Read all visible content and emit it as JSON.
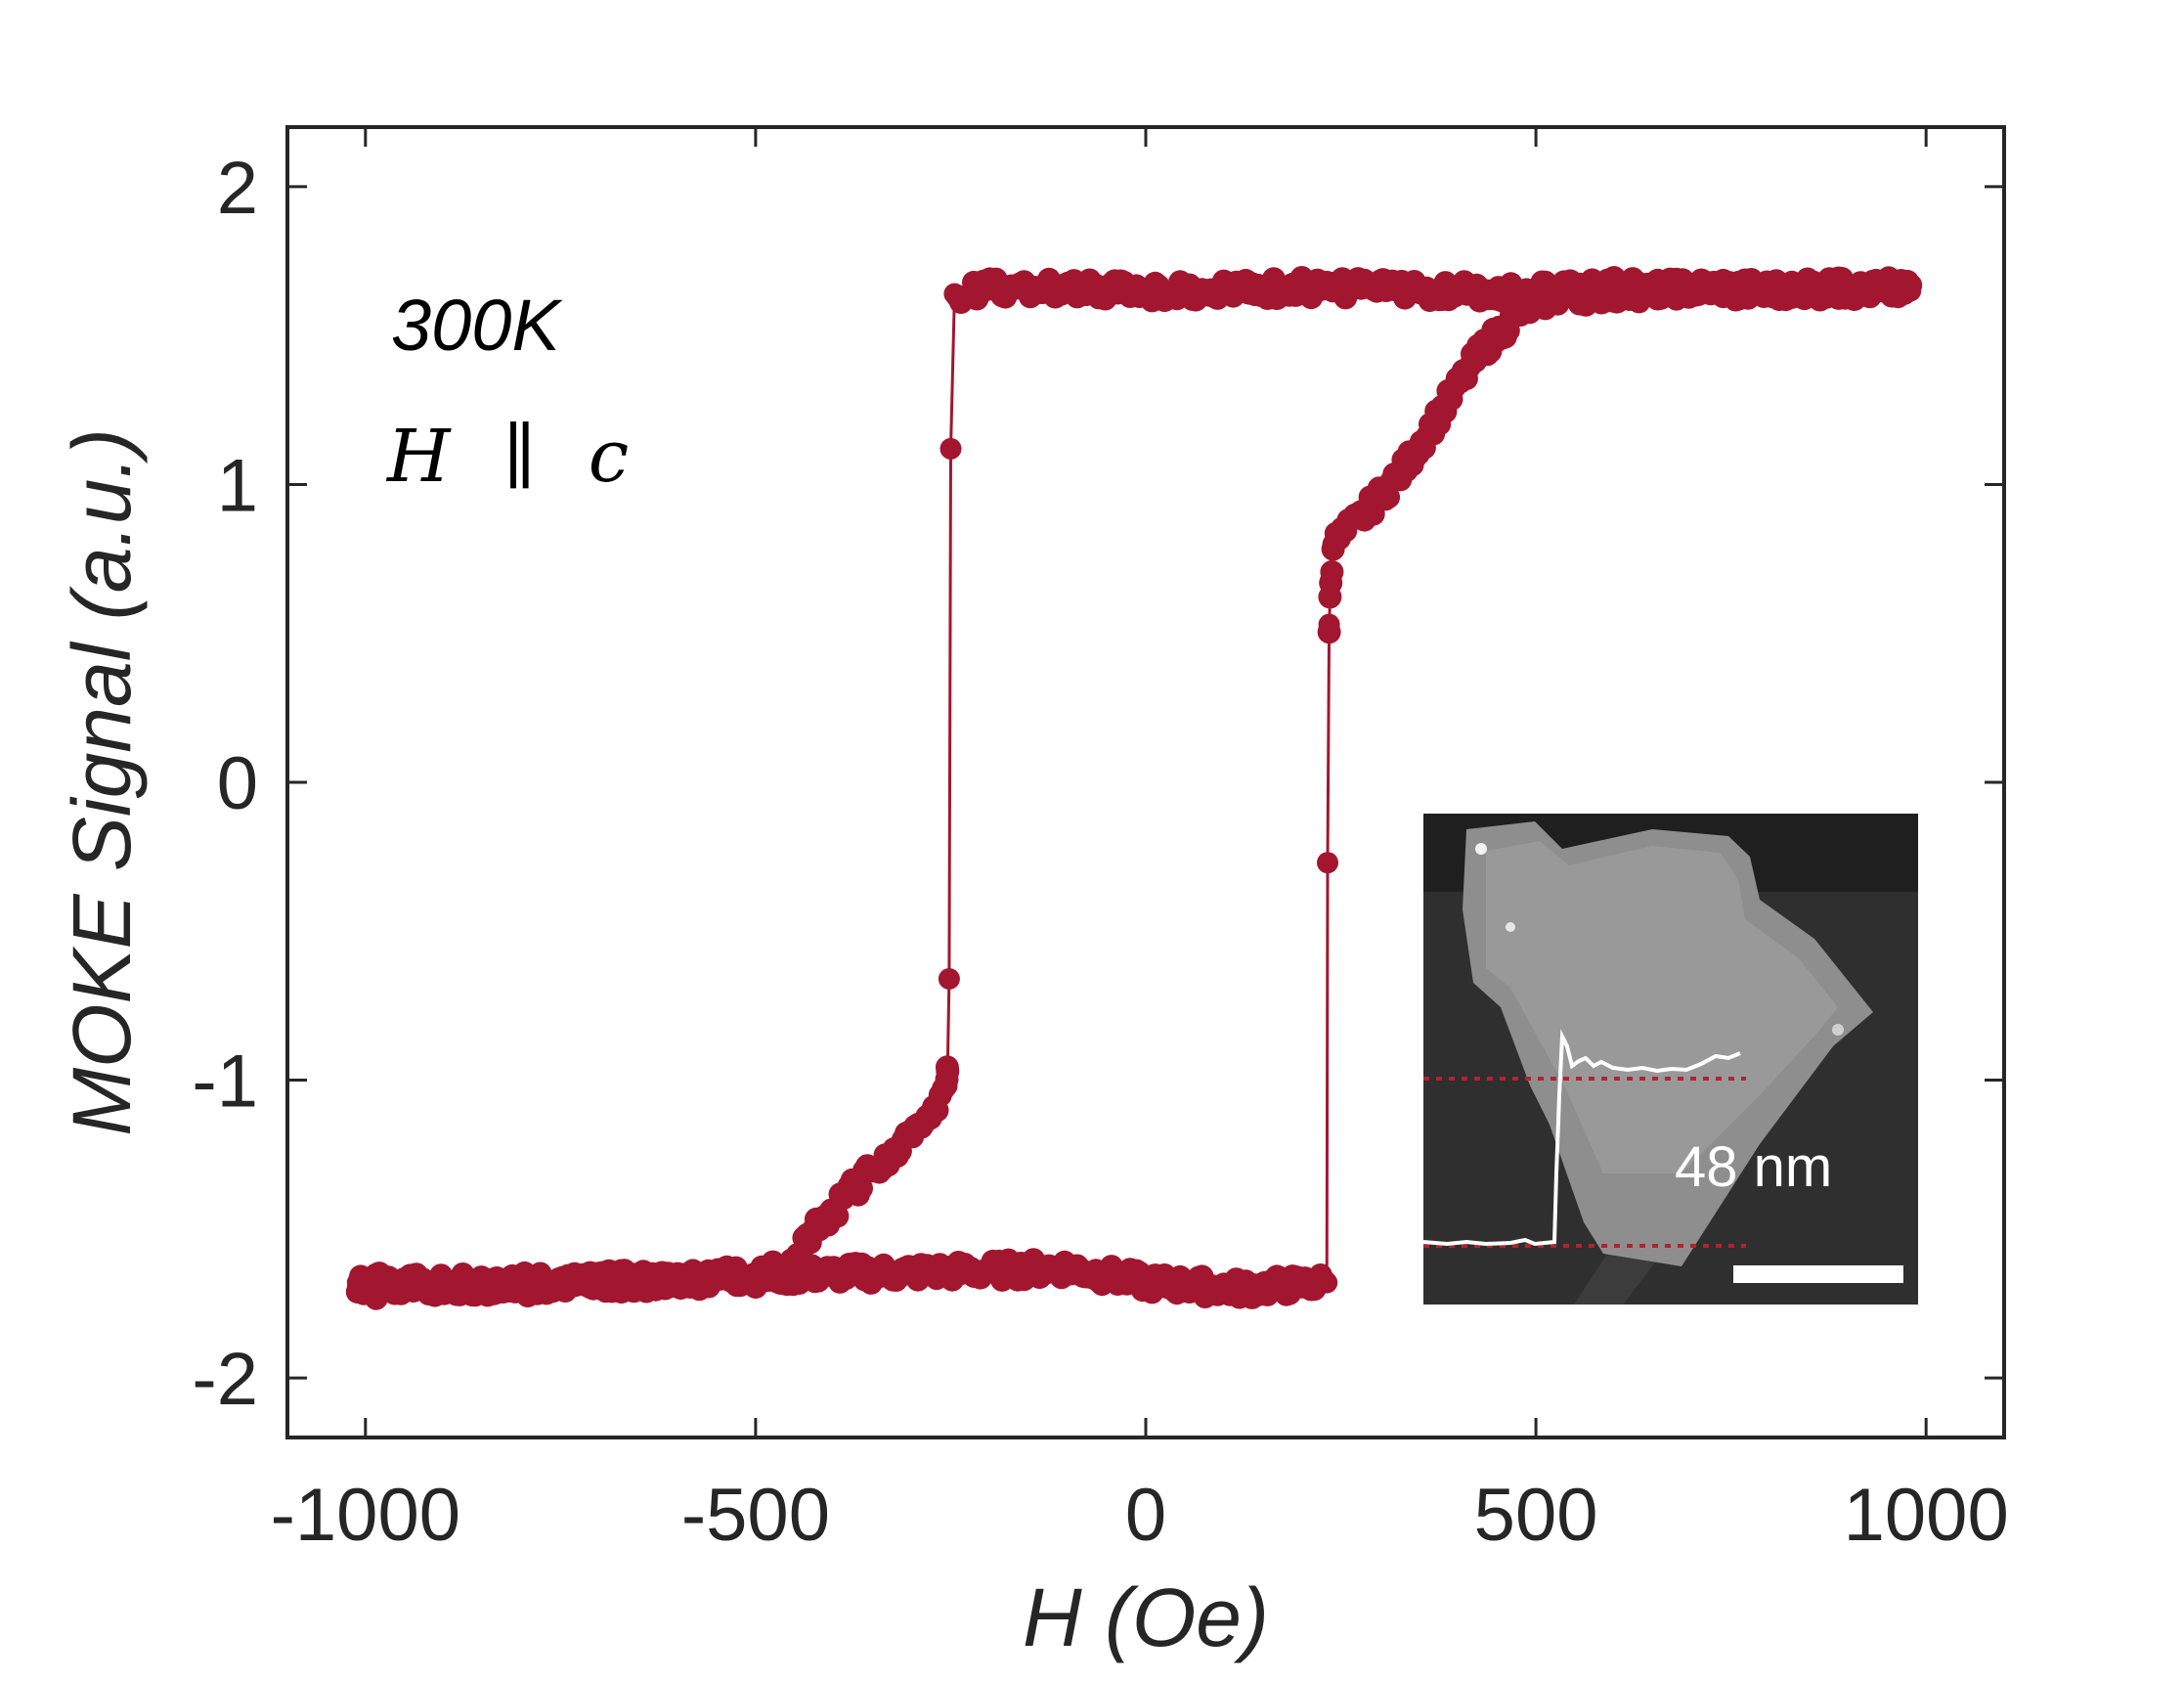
{
  "chart_data": {
    "type": "scatter",
    "xlabel": "H (Oe)",
    "ylabel": "MOKE Signal (a.u.)",
    "xlim": [
      -1100,
      1100
    ],
    "ylim": [
      -2.2,
      2.2
    ],
    "xticks": [
      "-1000",
      "-500",
      "0",
      "500",
      "1000"
    ],
    "xtick_values": [
      -1000,
      -500,
      0,
      500,
      1000
    ],
    "yticks": [
      "-2",
      "-1",
      "0",
      "1",
      "2"
    ],
    "ytick_values": [
      -2,
      -1,
      0,
      1,
      2
    ],
    "color": "#a31630",
    "annotations": {
      "temperature": "300K",
      "field_H": "H",
      "field_parallel": "∥",
      "field_c": "c"
    },
    "series": [
      {
        "branch": "descending (high field to low field)",
        "points": [
          [
            980,
            1.67
          ],
          [
            800,
            1.65
          ],
          [
            600,
            1.66
          ],
          [
            400,
            1.65
          ],
          [
            200,
            1.66
          ],
          [
            0,
            1.65
          ],
          [
            -200,
            1.66
          ],
          [
            -245,
            1.64
          ],
          [
            -250,
            1.12
          ],
          [
            -252,
            -0.66
          ],
          [
            -254,
            -0.96
          ],
          [
            -255,
            -1.02
          ],
          [
            -280,
            -1.12
          ],
          [
            -330,
            -1.25
          ],
          [
            -380,
            -1.38
          ],
          [
            -430,
            -1.52
          ],
          [
            -470,
            -1.64
          ],
          [
            -600,
            -1.67
          ],
          [
            -800,
            -1.69
          ],
          [
            -1010,
            -1.68
          ]
        ]
      },
      {
        "branch": "ascending (low field to high field)",
        "points": [
          [
            -1010,
            -1.7
          ],
          [
            -800,
            -1.68
          ],
          [
            -600,
            -1.67
          ],
          [
            -400,
            -1.65
          ],
          [
            -200,
            -1.64
          ],
          [
            -100,
            -1.63
          ],
          [
            0,
            -1.68
          ],
          [
            120,
            -1.7
          ],
          [
            232,
            -1.68
          ],
          [
            233,
            -0.27
          ],
          [
            235,
            0.53
          ],
          [
            237,
            0.68
          ],
          [
            240,
            0.8
          ],
          [
            280,
            0.9
          ],
          [
            330,
            1.05
          ],
          [
            380,
            1.25
          ],
          [
            430,
            1.45
          ],
          [
            480,
            1.58
          ],
          [
            520,
            1.63
          ],
          [
            700,
            1.66
          ],
          [
            980,
            1.65
          ]
        ]
      }
    ],
    "inset": {
      "label": "48 nm"
    }
  }
}
